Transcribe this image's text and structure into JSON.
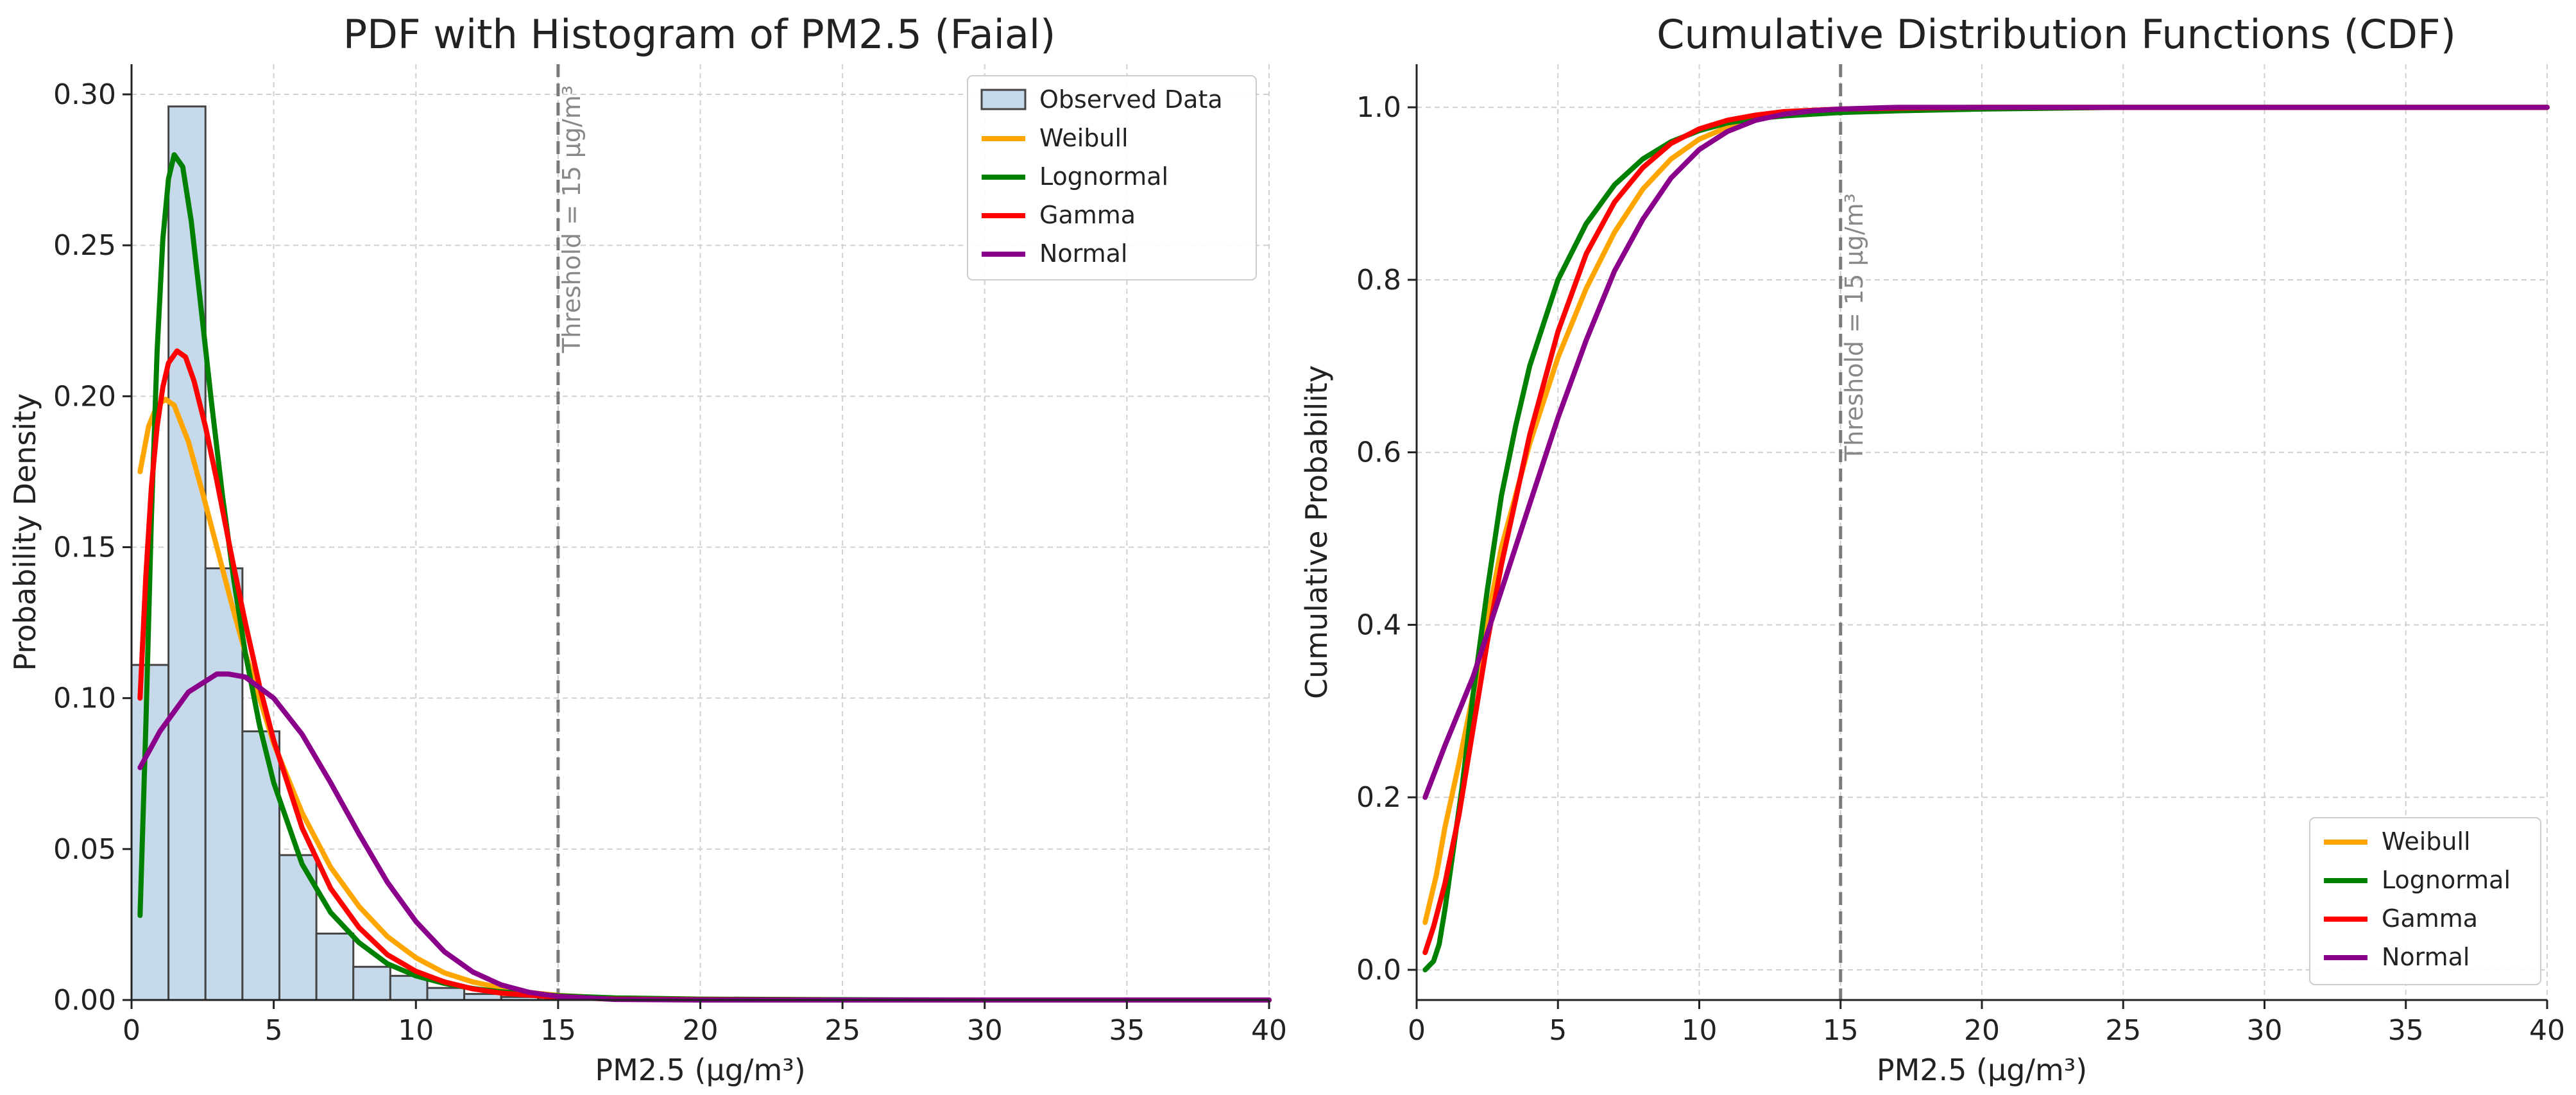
{
  "chart_data": [
    {
      "type": "histogram+line",
      "title": "PDF with Histogram of PM2.5 (Faial)",
      "xlabel": "PM2.5 (µg/m³)",
      "ylabel": "Probability Density",
      "xlim": [
        0,
        40
      ],
      "ylim": [
        0,
        0.31
      ],
      "xticks": [
        0,
        5,
        10,
        15,
        20,
        25,
        30,
        35,
        40
      ],
      "yticks": [
        0.0,
        0.05,
        0.1,
        0.15,
        0.2,
        0.25,
        0.3
      ],
      "ytick_labels": [
        "0.00",
        "0.05",
        "0.10",
        "0.15",
        "0.20",
        "0.25",
        "0.30"
      ],
      "grid": true,
      "legend_position": "top-right",
      "threshold": {
        "x": 15,
        "label": "Threshold = 15 µg/m³"
      },
      "histogram": {
        "name": "Observed Data",
        "color": "#c6d9ea",
        "bin_edges": [
          0,
          1.3,
          2.6,
          3.9,
          5.2,
          6.5,
          7.8,
          9.1,
          10.4,
          11.7,
          13.0,
          14.3,
          15.6,
          16.9,
          18.2,
          19.5,
          20.8,
          22.1,
          23.4,
          24.7,
          26.0,
          27.3,
          28.6,
          29.9,
          31.2,
          32.5,
          33.8,
          35.1,
          36.4,
          37.7,
          39.0,
          40.3
        ],
        "heights": [
          0.111,
          0.296,
          0.143,
          0.089,
          0.048,
          0.022,
          0.011,
          0.008,
          0.004,
          0.002,
          0.001,
          0.0007,
          0.0004,
          0.0003,
          0.0002,
          0.0001,
          0.0001,
          0.0001,
          0.0001,
          0.0001,
          0.0001,
          0.0001,
          0.0,
          0.0,
          0.0,
          0.0,
          0.0,
          0.0,
          0.0,
          0.0001,
          0.0001
        ]
      },
      "series": [
        {
          "name": "Weibull",
          "color": "#ffa500",
          "x": [
            0.3,
            0.6,
            0.9,
            1.2,
            1.5,
            2,
            2.5,
            3,
            3.5,
            4,
            5,
            6,
            7,
            8,
            9,
            10,
            11,
            12,
            13,
            14,
            15,
            17,
            20,
            25,
            30,
            35,
            40
          ],
          "y": [
            0.175,
            0.19,
            0.197,
            0.199,
            0.197,
            0.185,
            0.168,
            0.15,
            0.132,
            0.115,
            0.085,
            0.062,
            0.044,
            0.031,
            0.021,
            0.014,
            0.009,
            0.006,
            0.004,
            0.0025,
            0.0015,
            0.0006,
            0.0001,
            0.0,
            0.0,
            0.0,
            0.0
          ]
        },
        {
          "name": "Lognormal",
          "color": "#008000",
          "x": [
            0.3,
            0.5,
            0.7,
            0.9,
            1.1,
            1.3,
            1.5,
            1.8,
            2.1,
            2.4,
            2.8,
            3.2,
            3.6,
            4,
            4.5,
            5,
            6,
            7,
            8,
            9,
            10,
            11,
            12,
            13,
            15,
            17,
            20,
            25,
            30,
            35,
            40
          ],
          "y": [
            0.028,
            0.09,
            0.16,
            0.215,
            0.252,
            0.272,
            0.28,
            0.276,
            0.258,
            0.233,
            0.199,
            0.167,
            0.139,
            0.115,
            0.091,
            0.072,
            0.045,
            0.029,
            0.019,
            0.012,
            0.008,
            0.0055,
            0.0038,
            0.0027,
            0.0014,
            0.0007,
            0.0003,
            0.0001,
            0.0,
            0.0,
            0.0
          ]
        },
        {
          "name": "Gamma",
          "color": "#ff0000",
          "x": [
            0.3,
            0.5,
            0.7,
            0.9,
            1.1,
            1.3,
            1.6,
            1.9,
            2.2,
            2.6,
            3,
            3.5,
            4,
            4.5,
            5,
            6,
            7,
            8,
            9,
            10,
            11,
            12,
            13,
            15,
            17,
            20,
            25,
            30,
            35,
            40
          ],
          "y": [
            0.1,
            0.14,
            0.17,
            0.19,
            0.203,
            0.211,
            0.215,
            0.213,
            0.205,
            0.19,
            0.172,
            0.148,
            0.125,
            0.104,
            0.086,
            0.057,
            0.037,
            0.024,
            0.015,
            0.0095,
            0.006,
            0.0037,
            0.0023,
            0.0009,
            0.0003,
            0.0001,
            0.0,
            0.0,
            0.0,
            0.0
          ]
        },
        {
          "name": "Normal",
          "color": "#8b008b",
          "x": [
            0.3,
            1,
            2,
            3,
            3.4,
            4,
            5,
            6,
            7,
            8,
            9,
            10,
            11,
            12,
            13,
            14,
            15,
            17,
            20,
            25,
            30,
            35,
            40
          ],
          "y": [
            0.077,
            0.089,
            0.102,
            0.108,
            0.108,
            0.107,
            0.1,
            0.088,
            0.072,
            0.055,
            0.039,
            0.026,
            0.016,
            0.0093,
            0.005,
            0.0025,
            0.0012,
            0.0002,
            0.0,
            0.0,
            0.0,
            0.0,
            0.0
          ]
        }
      ]
    },
    {
      "type": "line",
      "title": "Cumulative Distribution Functions (CDF)",
      "xlabel": "PM2.5 (µg/m³)",
      "ylabel": "Cumulative Probability",
      "xlim": [
        0,
        40
      ],
      "ylim": [
        -0.035,
        1.05
      ],
      "xticks": [
        0,
        5,
        10,
        15,
        20,
        25,
        30,
        35,
        40
      ],
      "yticks": [
        0.0,
        0.2,
        0.4,
        0.6,
        0.8,
        1.0
      ],
      "ytick_labels": [
        "0.0",
        "0.2",
        "0.4",
        "0.6",
        "0.8",
        "1.0"
      ],
      "grid": true,
      "legend_position": "bottom-right",
      "threshold": {
        "x": 15,
        "label": "Threshold = 15 µg/m³"
      },
      "series": [
        {
          "name": "Weibull",
          "color": "#ffa500",
          "x": [
            0.3,
            0.7,
            1,
            1.5,
            2,
            3,
            4,
            5,
            6,
            7,
            8,
            9,
            10,
            11,
            12,
            13,
            14,
            15,
            17,
            20,
            25,
            30,
            35,
            40
          ],
          "y": [
            0.055,
            0.11,
            0.165,
            0.24,
            0.32,
            0.49,
            0.61,
            0.71,
            0.79,
            0.855,
            0.905,
            0.94,
            0.963,
            0.977,
            0.987,
            0.993,
            0.996,
            0.998,
            0.999,
            1.0,
            1.0,
            1.0,
            1.0,
            1.0
          ]
        },
        {
          "name": "Lognormal",
          "color": "#008000",
          "x": [
            0.3,
            0.6,
            0.8,
            1,
            1.3,
            1.6,
            2,
            2.5,
            3,
            3.5,
            4,
            5,
            6,
            7,
            8,
            9,
            10,
            11,
            12,
            13,
            15,
            17,
            20,
            25,
            30,
            35,
            40
          ],
          "y": [
            0.0,
            0.01,
            0.03,
            0.07,
            0.14,
            0.21,
            0.32,
            0.44,
            0.55,
            0.63,
            0.7,
            0.8,
            0.865,
            0.91,
            0.94,
            0.96,
            0.973,
            0.982,
            0.987,
            0.99,
            0.994,
            0.996,
            0.998,
            1.0,
            1.0,
            1.0,
            1.0
          ]
        },
        {
          "name": "Gamma",
          "color": "#ff0000",
          "x": [
            0.3,
            0.6,
            1,
            1.5,
            2,
            2.5,
            3,
            4,
            5,
            6,
            7,
            8,
            9,
            10,
            11,
            12,
            13,
            15,
            17,
            20,
            25,
            30,
            35,
            40
          ],
          "y": [
            0.02,
            0.05,
            0.1,
            0.18,
            0.28,
            0.38,
            0.47,
            0.62,
            0.74,
            0.83,
            0.89,
            0.93,
            0.958,
            0.975,
            0.985,
            0.991,
            0.995,
            0.998,
            0.999,
            1.0,
            1.0,
            1.0,
            1.0,
            1.0
          ]
        },
        {
          "name": "Normal",
          "color": "#8b008b",
          "x": [
            0.3,
            1,
            2,
            3,
            4,
            5,
            6,
            7,
            8,
            9,
            10,
            11,
            12,
            13,
            14,
            15,
            17,
            20,
            25,
            30,
            35,
            40
          ],
          "y": [
            0.2,
            0.26,
            0.34,
            0.44,
            0.54,
            0.64,
            0.73,
            0.81,
            0.87,
            0.918,
            0.951,
            0.972,
            0.985,
            0.992,
            0.996,
            0.998,
            1.0,
            1.0,
            1.0,
            1.0,
            1.0,
            1.0
          ]
        }
      ]
    }
  ]
}
